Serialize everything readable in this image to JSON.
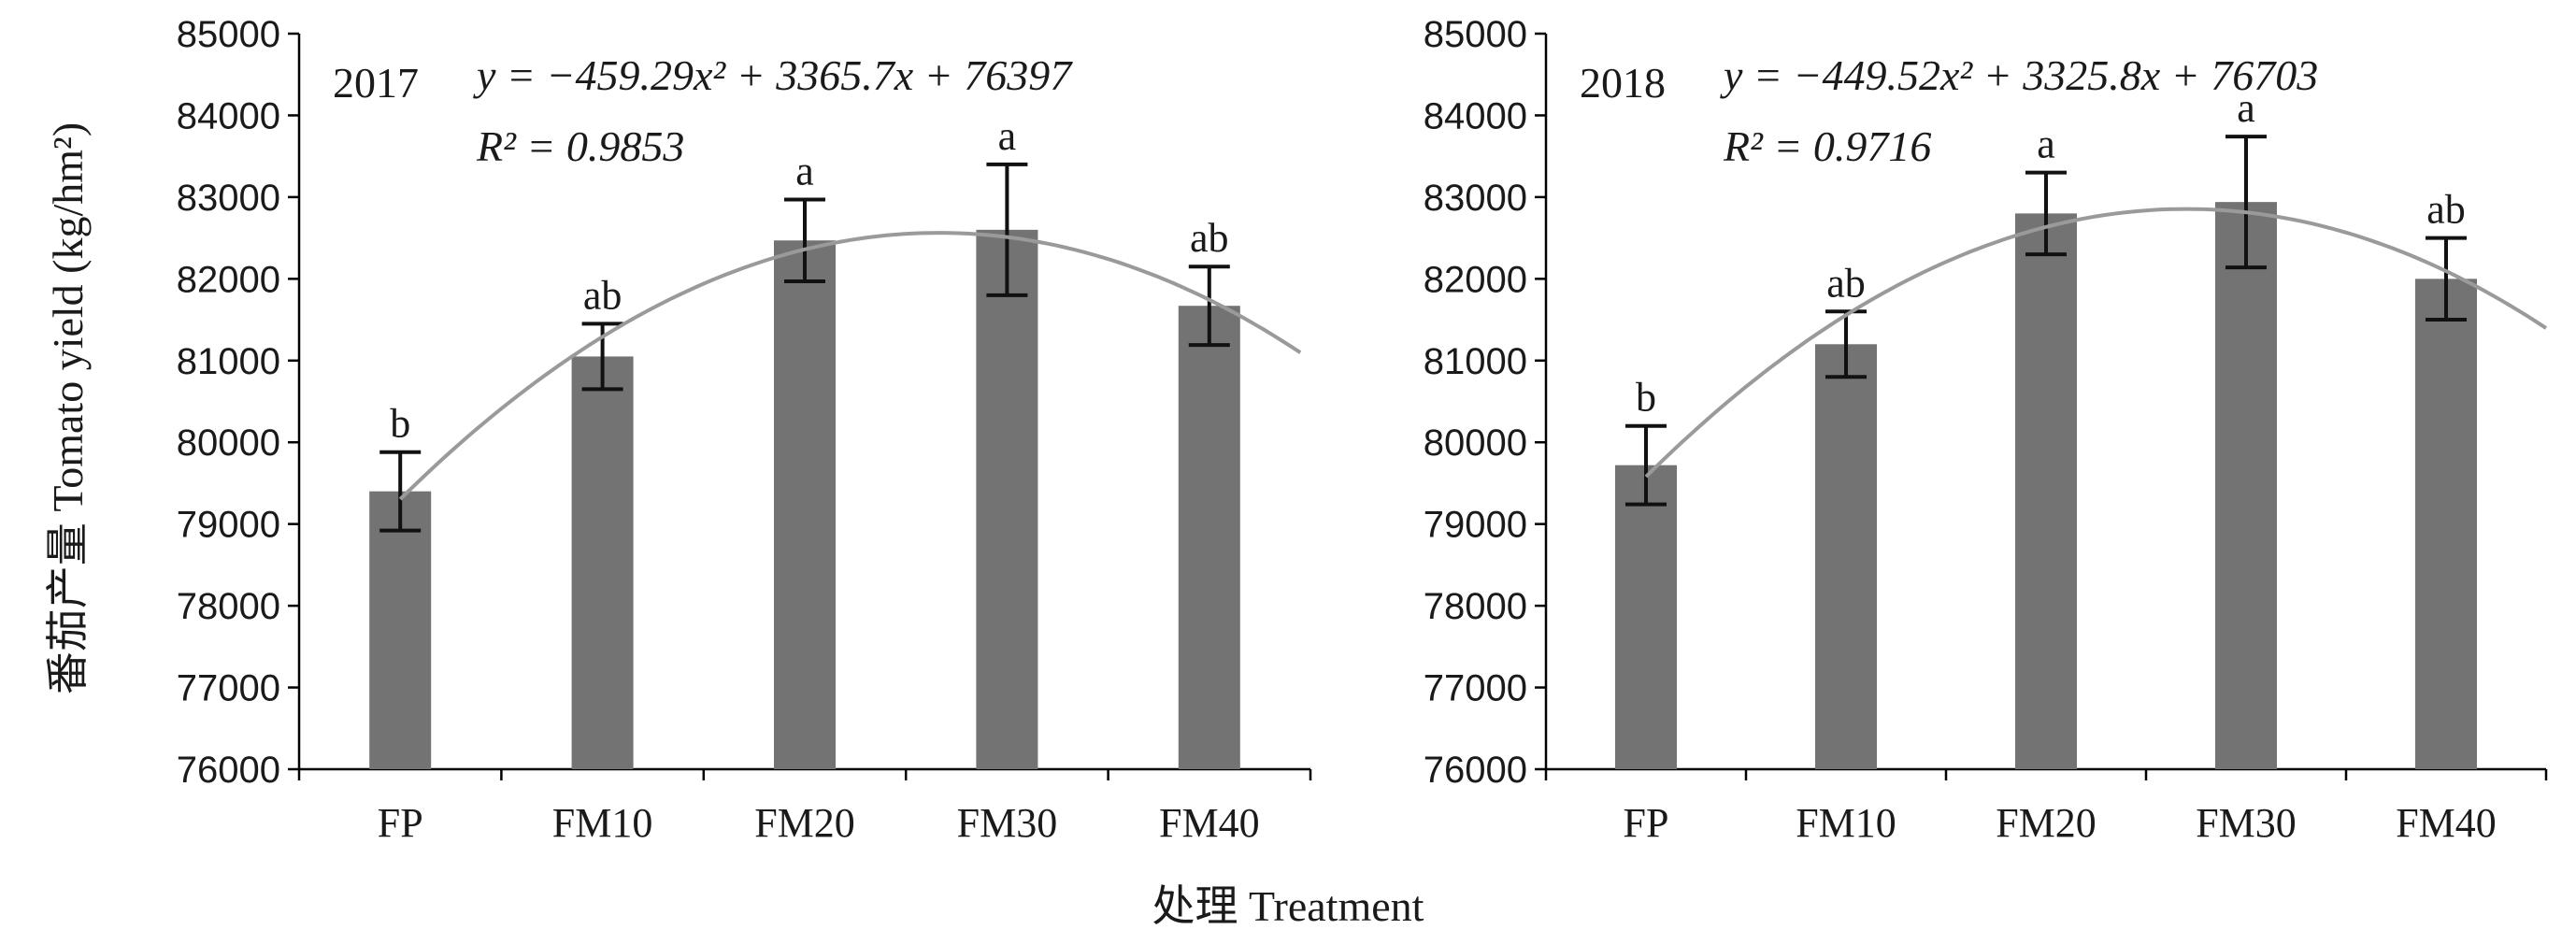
{
  "ylabel": "番茄产量 Tomato yield (kg/hm²)",
  "xlabel": "处理 Treatment",
  "chart_data": [
    {
      "type": "bar",
      "year_label": "2017",
      "equation": "y = −459.29x² + 3365.7x + 76397",
      "r2": "R² = 0.9853",
      "fit": {
        "a": -459.29,
        "b": 3365.7,
        "c": 76397
      },
      "categories": [
        "FP",
        "FM10",
        "FM20",
        "FM30",
        "FM40"
      ],
      "values": [
        79400,
        81050,
        82470,
        82600,
        81670
      ],
      "errors": [
        480,
        400,
        500,
        800,
        480
      ],
      "significance": [
        "b",
        "ab",
        "a",
        "a",
        "ab"
      ],
      "ylim": [
        76000,
        85000
      ],
      "yticks": [
        "76000",
        "77000",
        "78000",
        "79000",
        "80000",
        "81000",
        "82000",
        "83000",
        "84000",
        "85000"
      ]
    },
    {
      "type": "bar",
      "year_label": "2018",
      "equation": "y = −449.52x² + 3325.8x + 76703",
      "r2": "R² = 0.9716",
      "fit": {
        "a": -449.52,
        "b": 3325.8,
        "c": 76703
      },
      "categories": [
        "FP",
        "FM10",
        "FM20",
        "FM30",
        "FM40"
      ],
      "values": [
        79720,
        81200,
        82800,
        82940,
        82000
      ],
      "errors": [
        480,
        400,
        500,
        800,
        500
      ],
      "significance": [
        "b",
        "ab",
        "a",
        "a",
        "ab"
      ],
      "ylim": [
        76000,
        85000
      ],
      "yticks": [
        "76000",
        "77000",
        "78000",
        "79000",
        "80000",
        "81000",
        "82000",
        "83000",
        "84000",
        "85000"
      ]
    }
  ]
}
